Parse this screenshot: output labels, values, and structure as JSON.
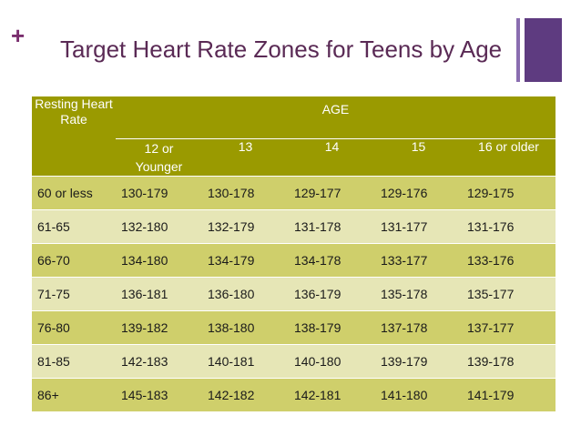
{
  "slide": {
    "title": "Target Heart Rate Zones for Teens by Age"
  },
  "table": {
    "corner_header": "Resting Heart Rate",
    "group_header": "AGE",
    "age_columns": [
      "12 or Younger",
      "13",
      "14",
      "15",
      "16 or older"
    ],
    "rows": [
      {
        "resting": "60 or less",
        "values": [
          "130-179",
          "130-178",
          "129-177",
          "129-176",
          "129-175"
        ]
      },
      {
        "resting": "61-65",
        "values": [
          "132-180",
          "132-179",
          "131-178",
          "131-177",
          "131-176"
        ]
      },
      {
        "resting": "66-70",
        "values": [
          "134-180",
          "134-179",
          "134-178",
          "133-177",
          "133-176"
        ]
      },
      {
        "resting": "71-75",
        "values": [
          "136-181",
          "136-180",
          "136-179",
          "135-178",
          "135-177"
        ]
      },
      {
        "resting": "76-80",
        "values": [
          "139-182",
          "138-180",
          "138-179",
          "137-178",
          "137-177"
        ]
      },
      {
        "resting": "81-85",
        "values": [
          "142-183",
          "140-181",
          "140-180",
          "139-179",
          "139-178"
        ]
      },
      {
        "resting": "86+",
        "values": [
          "145-183",
          "142-182",
          "142-181",
          "141-180",
          "141-179"
        ]
      }
    ]
  },
  "colors": {
    "header_bg": "#9a9a00",
    "row_dark": "#cfcf6b",
    "row_light": "#e6e6b6",
    "title": "#5a2a55",
    "accent": "#5e3b80"
  },
  "icons": {
    "plus": "plus-icon"
  }
}
